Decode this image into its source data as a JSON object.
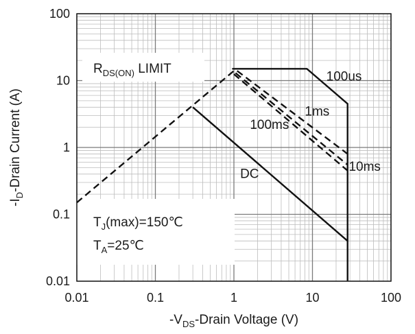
{
  "chart_data": {
    "type": "line",
    "x_scale": "log",
    "y_scale": "log",
    "xlim": [
      0.01,
      100
    ],
    "ylim": [
      0.01,
      100
    ],
    "grid": true,
    "x_ticks": [
      "0.01",
      "0.1",
      "1",
      "10",
      "100"
    ],
    "y_ticks": [
      "100",
      "10",
      "1",
      "0.1",
      "0.01"
    ],
    "xlabel": {
      "prefix": "-V",
      "sub": "DS",
      "suffix": "-Drain Voltage (V)"
    },
    "ylabel": {
      "prefix": "-I",
      "sub": "D",
      "suffix": "-Drain Current (A)"
    },
    "series": [
      {
        "name": "RDS(ON) LIMIT",
        "style": "dashed",
        "points": [
          [
            0.01,
            0.15
          ],
          [
            1,
            14
          ]
        ]
      },
      {
        "name": "100us",
        "style": "solid",
        "points": [
          [
            0.95,
            15
          ],
          [
            8.5,
            15
          ],
          [
            28,
            4.5
          ],
          [
            28,
            0.01
          ]
        ]
      },
      {
        "name": "1ms",
        "style": "dashed",
        "points": [
          [
            1.1,
            14
          ],
          [
            28,
            0.8
          ]
        ]
      },
      {
        "name": "10ms",
        "style": "dashed",
        "points": [
          [
            1.05,
            13
          ],
          [
            28,
            0.55
          ]
        ]
      },
      {
        "name": "100ms",
        "style": "dashed",
        "points": [
          [
            1,
            12.5
          ],
          [
            28,
            0.45
          ]
        ]
      },
      {
        "name": "DC",
        "style": "solid",
        "points": [
          [
            0.3,
            4
          ],
          [
            28,
            0.04
          ]
        ]
      }
    ],
    "annotations": {
      "rds_limit": {
        "main": "R",
        "sub": "DS(ON)",
        "tail": " LIMIT"
      },
      "labels": [
        {
          "text": "100us",
          "x": 15,
          "y": 10
        },
        {
          "text": "1ms",
          "x": 8,
          "y": 3
        },
        {
          "text": "100ms",
          "x": 1.6,
          "y": 1.9
        },
        {
          "text": "10ms",
          "x": 29,
          "y": 0.45
        },
        {
          "text": "DC",
          "x": 1.2,
          "y": 0.35
        }
      ],
      "tj": {
        "main": "T",
        "sub": "J",
        "tail": "(max)=150℃"
      },
      "ta": {
        "main": "T",
        "sub": "A",
        "tail": "=25℃"
      }
    }
  }
}
